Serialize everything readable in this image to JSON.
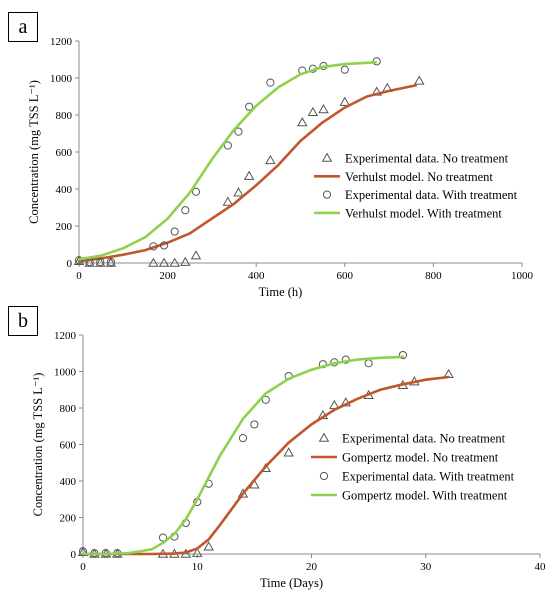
{
  "chart_data": [
    {
      "type": "line",
      "panel_label": "a",
      "xlabel": "Time (h)",
      "ylabel": "Concentration (mg TSS L⁻¹)",
      "xlim": [
        0,
        1000
      ],
      "ylim": [
        0,
        1200
      ],
      "xticks": [
        "0",
        "200",
        "400",
        "600",
        "800",
        "1000"
      ],
      "yticks": [
        "0",
        "200",
        "400",
        "600",
        "800",
        "1000",
        "1200"
      ],
      "grid": false,
      "legend_position": "right",
      "series": [
        {
          "name": "Experimental data. No treatment",
          "kind": "marker",
          "marker": "triangle",
          "color": "#555555",
          "x": [
            0,
            24,
            48,
            72,
            168,
            192,
            216,
            240,
            264,
            336,
            360,
            384,
            432,
            504,
            528,
            552,
            600,
            672,
            696,
            768
          ],
          "y": [
            10,
            0,
            0,
            0,
            0,
            0,
            0,
            5,
            40,
            330,
            380,
            470,
            555,
            760,
            815,
            830,
            870,
            925,
            945,
            985
          ]
        },
        {
          "name": "Verhulst model. No treatment",
          "kind": "line",
          "color": "#c0562a",
          "x": [
            0,
            50,
            100,
            150,
            200,
            250,
            300,
            350,
            400,
            450,
            500,
            550,
            600,
            650,
            700,
            760
          ],
          "y": [
            10,
            25,
            45,
            70,
            110,
            160,
            240,
            320,
            420,
            530,
            660,
            760,
            840,
            900,
            930,
            960
          ]
        },
        {
          "name": "Experimental data. With treatment",
          "kind": "marker",
          "marker": "circle",
          "color": "#555555",
          "x": [
            0,
            24,
            48,
            72,
            168,
            192,
            216,
            240,
            264,
            336,
            360,
            384,
            432,
            504,
            528,
            552,
            600,
            672
          ],
          "y": [
            15,
            5,
            5,
            5,
            90,
            95,
            170,
            285,
            385,
            635,
            710,
            845,
            975,
            1040,
            1050,
            1065,
            1045,
            1090
          ]
        },
        {
          "name": "Verhulst model. With treatment",
          "kind": "line",
          "color": "#8fd14f",
          "x": [
            0,
            50,
            100,
            150,
            200,
            250,
            300,
            350,
            400,
            450,
            500,
            550,
            600,
            670
          ],
          "y": [
            20,
            40,
            80,
            140,
            240,
            380,
            560,
            720,
            850,
            950,
            1020,
            1060,
            1075,
            1085
          ]
        }
      ]
    },
    {
      "type": "line",
      "panel_label": "b",
      "xlabel": "Time (Days)",
      "ylabel": "Concentration (mg TSS L⁻¹)",
      "xlim": [
        0,
        40
      ],
      "ylim": [
        0,
        1200
      ],
      "xticks": [
        "0",
        "10",
        "20",
        "30",
        "40"
      ],
      "yticks": [
        "0",
        "200",
        "400",
        "600",
        "800",
        "1000",
        "1200"
      ],
      "grid": false,
      "legend_position": "right",
      "series": [
        {
          "name": "Experimental data. No treatment",
          "kind": "marker",
          "marker": "triangle",
          "color": "#555555",
          "x": [
            0,
            1,
            2,
            3,
            7,
            8,
            9,
            10,
            11,
            14,
            15,
            16,
            18,
            21,
            22,
            23,
            25,
            28,
            29,
            32
          ],
          "y": [
            10,
            0,
            0,
            0,
            0,
            0,
            0,
            5,
            40,
            330,
            380,
            470,
            555,
            760,
            815,
            830,
            870,
            925,
            945,
            985
          ]
        },
        {
          "name": "Gompertz model. No treatment",
          "kind": "line",
          "color": "#c0562a",
          "x": [
            0,
            2,
            4,
            6,
            8,
            9,
            10,
            11,
            12,
            14,
            16,
            18,
            20,
            22,
            24,
            26,
            28,
            30,
            32
          ],
          "y": [
            0,
            0,
            0,
            0,
            2,
            8,
            30,
            80,
            160,
            330,
            480,
            610,
            710,
            790,
            850,
            900,
            930,
            955,
            970
          ]
        },
        {
          "name": "Experimental data. With treatment",
          "kind": "marker",
          "marker": "circle",
          "color": "#555555",
          "x": [
            0,
            1,
            2,
            3,
            7,
            8,
            9,
            10,
            11,
            14,
            15,
            16,
            18,
            21,
            22,
            23,
            25,
            28
          ],
          "y": [
            15,
            5,
            5,
            5,
            90,
            95,
            170,
            285,
            385,
            635,
            710,
            845,
            975,
            1040,
            1050,
            1065,
            1045,
            1090
          ]
        },
        {
          "name": "Gompertz model. With treatment",
          "kind": "line",
          "color": "#8fd14f",
          "x": [
            0,
            2,
            4,
            6,
            7,
            8,
            9,
            10,
            11,
            12,
            14,
            16,
            18,
            20,
            22,
            24,
            26,
            28
          ],
          "y": [
            0,
            0,
            5,
            25,
            60,
            110,
            190,
            300,
            420,
            540,
            740,
            880,
            960,
            1010,
            1045,
            1065,
            1075,
            1080
          ]
        }
      ]
    }
  ],
  "colors": {
    "triangle_marker": "#555555",
    "circle_marker": "#555555",
    "no_treatment_line": "#c0562a",
    "with_treatment_line": "#8fd14f"
  }
}
